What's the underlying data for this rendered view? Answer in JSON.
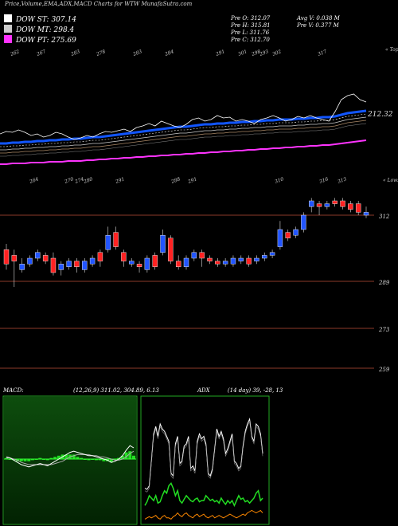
{
  "header": {
    "title": "Price,Volume,EMA,ADX,MACD Charts for WTW MunafaSutra.com",
    "legend": [
      {
        "label": "DOW ST: 307.14",
        "color": "#ffffff"
      },
      {
        "label": "DOW MT: 298.4",
        "color": "#cccccc"
      },
      {
        "label": "DOW PT: 275.69",
        "color": "#ff33ff"
      }
    ],
    "prev_stats": [
      "Pre O: 312.07",
      "Pre H: 315.81",
      "Pre L: 311.76",
      "Pre C: 312.70"
    ],
    "volume_stats": [
      "Avg V: 0.038 M",
      "Pre V: 0.377 M"
    ]
  },
  "colors": {
    "up_candle": "#2255ff",
    "down_candle": "#ff2222",
    "st_line": "#ffffff",
    "mt_line": "#cccccc",
    "pt_line": "#ff33ff",
    "ema_band": "#1155ff",
    "macd_histogram": "#22dd22",
    "adx_plus": "#22dd22",
    "adx_minus": "#ff8800",
    "panel_border": "#22aa22",
    "grid_line": "#8b3a2a"
  },
  "chart_data": [
    {
      "type": "line",
      "name": "ema-panel",
      "top_tick_labels": [
        "262",
        "267",
        "283",
        "278",
        "283",
        "284",
        "291",
        "301",
        "298",
        "293",
        "302",
        "317"
      ],
      "bottom_tick_labels": [
        "264",
        "270",
        "274",
        "280",
        "291",
        "288",
        "291",
        "310",
        "316",
        "313"
      ],
      "right_label": "« Tops",
      "bottom_right_label": "« Lows",
      "annotation": "212.32",
      "series": [
        {
          "name": "DOW ST",
          "values": [
            168,
            165,
            166,
            163,
            166,
            170,
            168,
            172,
            170,
            166,
            168,
            172,
            175,
            173,
            170,
            172,
            168,
            165,
            166,
            164,
            162,
            165,
            160,
            158,
            155,
            158,
            152,
            155,
            158,
            160,
            156,
            150,
            148,
            152,
            150,
            145,
            148,
            147,
            152,
            150,
            152,
            155,
            150,
            148,
            145,
            148,
            152,
            150,
            146,
            148,
            145,
            148,
            150,
            152,
            140,
            125,
            120,
            118,
            125,
            128
          ]
        },
        {
          "name": "DOW MT",
          "values": [
            188,
            188,
            187,
            187,
            186,
            186,
            185,
            185,
            184,
            184,
            183,
            183,
            182,
            182,
            181,
            180,
            180,
            179,
            178,
            177,
            176,
            175,
            174,
            173,
            172,
            171,
            170,
            169,
            168,
            167,
            167,
            166,
            165,
            164,
            164,
            163,
            163,
            162,
            162,
            161,
            161,
            160,
            160,
            159,
            159,
            158,
            158,
            158,
            157,
            157,
            156,
            156,
            155,
            155,
            154,
            152,
            150,
            149,
            148,
            147
          ]
        },
        {
          "name": "DOW PT",
          "values": [
            206,
            206,
            205,
            205,
            205,
            204,
            204,
            204,
            203,
            203,
            203,
            202,
            202,
            202,
            201,
            201,
            200,
            200,
            199,
            199,
            198,
            198,
            197,
            197,
            196,
            196,
            195,
            195,
            194,
            194,
            193,
            193,
            192,
            192,
            191,
            191,
            190,
            190,
            189,
            189,
            188,
            188,
            187,
            187,
            186,
            186,
            185,
            185,
            184,
            184,
            183,
            183,
            182,
            182,
            181,
            180,
            179,
            178,
            177,
            176
          ]
        }
      ]
    },
    {
      "type": "candlestick",
      "name": "price-panel",
      "right_labels": [
        "312",
        "289",
        "273",
        "259"
      ],
      "candles": [
        {
          "o": 295,
          "c": 300,
          "h": 302,
          "l": 293,
          "up": false
        },
        {
          "o": 298,
          "c": 296,
          "h": 300,
          "l": 287,
          "up": false
        },
        {
          "o": 295,
          "c": 293,
          "h": 297,
          "l": 292,
          "up": true
        },
        {
          "o": 297,
          "c": 295,
          "h": 298,
          "l": 294,
          "up": true
        },
        {
          "o": 299,
          "c": 297,
          "h": 300,
          "l": 296,
          "up": true
        },
        {
          "o": 298,
          "c": 296,
          "h": 299,
          "l": 295,
          "up": false
        },
        {
          "o": 297,
          "c": 292,
          "h": 299,
          "l": 291,
          "up": false
        },
        {
          "o": 293,
          "c": 295,
          "h": 296,
          "l": 291,
          "up": true
        },
        {
          "o": 294,
          "c": 296,
          "h": 297,
          "l": 293,
          "up": true
        },
        {
          "o": 296,
          "c": 294,
          "h": 297,
          "l": 292,
          "up": false
        },
        {
          "o": 293,
          "c": 296,
          "h": 297,
          "l": 292,
          "up": true
        },
        {
          "o": 295,
          "c": 297,
          "h": 298,
          "l": 294,
          "up": true
        },
        {
          "o": 299,
          "c": 296,
          "h": 300,
          "l": 294,
          "up": false
        },
        {
          "o": 300,
          "c": 305,
          "h": 308,
          "l": 299,
          "up": true
        },
        {
          "o": 306,
          "c": 301,
          "h": 308,
          "l": 300,
          "up": false
        },
        {
          "o": 299,
          "c": 296,
          "h": 300,
          "l": 294,
          "up": false
        },
        {
          "o": 296,
          "c": 295,
          "h": 297,
          "l": 294,
          "up": true
        },
        {
          "o": 295,
          "c": 294,
          "h": 296,
          "l": 292,
          "up": false
        },
        {
          "o": 293,
          "c": 297,
          "h": 298,
          "l": 292,
          "up": true
        },
        {
          "o": 298,
          "c": 294,
          "h": 299,
          "l": 293,
          "up": false
        },
        {
          "o": 299,
          "c": 305,
          "h": 307,
          "l": 298,
          "up": true
        },
        {
          "o": 304,
          "c": 296,
          "h": 305,
          "l": 295,
          "up": false
        },
        {
          "o": 296,
          "c": 294,
          "h": 298,
          "l": 293,
          "up": false
        },
        {
          "o": 294,
          "c": 297,
          "h": 298,
          "l": 293,
          "up": true
        },
        {
          "o": 297,
          "c": 299,
          "h": 300,
          "l": 296,
          "up": true
        },
        {
          "o": 299,
          "c": 297,
          "h": 300,
          "l": 294,
          "up": false
        },
        {
          "o": 297,
          "c": 296,
          "h": 298,
          "l": 295,
          "up": false
        },
        {
          "o": 296,
          "c": 295,
          "h": 297,
          "l": 294,
          "up": false
        },
        {
          "o": 295,
          "c": 296,
          "h": 297,
          "l": 294,
          "up": true
        },
        {
          "o": 295,
          "c": 297,
          "h": 298,
          "l": 294,
          "up": true
        },
        {
          "o": 297,
          "c": 296,
          "h": 298,
          "l": 295,
          "up": true
        },
        {
          "o": 297,
          "c": 295,
          "h": 298,
          "l": 294,
          "up": false
        },
        {
          "o": 296,
          "c": 297,
          "h": 298,
          "l": 295,
          "up": true
        },
        {
          "o": 297,
          "c": 298,
          "h": 299,
          "l": 296,
          "up": true
        },
        {
          "o": 298,
          "c": 299,
          "h": 300,
          "l": 297,
          "up": true
        },
        {
          "o": 301,
          "c": 307,
          "h": 310,
          "l": 300,
          "up": true
        },
        {
          "o": 306,
          "c": 304,
          "h": 307,
          "l": 303,
          "up": false
        },
        {
          "o": 305,
          "c": 307,
          "h": 308,
          "l": 304,
          "up": true
        },
        {
          "o": 307,
          "c": 312,
          "h": 313,
          "l": 306,
          "up": true
        },
        {
          "o": 315,
          "c": 317,
          "h": 318,
          "l": 313,
          "up": true
        },
        {
          "o": 316,
          "c": 315,
          "h": 317,
          "l": 312,
          "up": false
        },
        {
          "o": 315,
          "c": 316,
          "h": 317,
          "l": 314,
          "up": true
        },
        {
          "o": 317,
          "c": 316,
          "h": 318,
          "l": 315,
          "up": false
        },
        {
          "o": 317,
          "c": 315,
          "h": 318,
          "l": 314,
          "up": false
        },
        {
          "o": 316,
          "c": 314,
          "h": 317,
          "l": 313,
          "up": false
        },
        {
          "o": 316,
          "c": 313,
          "h": 317,
          "l": 312,
          "up": false
        },
        {
          "o": 313,
          "c": 312,
          "h": 315,
          "l": 311,
          "up": true
        }
      ]
    },
    {
      "type": "line",
      "name": "macd-panel",
      "label": "MACD:",
      "values_text": "(12,26,9) 311.02, 304.89, 6.13",
      "macd": [
        0.2,
        0.1,
        -0.1,
        -0.3,
        -0.5,
        -0.6,
        -0.7,
        -0.6,
        -0.5,
        -0.4,
        -0.5,
        -0.6,
        -0.4,
        -0.2,
        0.0,
        0.2,
        0.4,
        0.6,
        0.7,
        0.6,
        0.5,
        0.4,
        0.3,
        0.3,
        0.2,
        0.1,
        0.0,
        -0.1,
        -0.3,
        -0.2,
        0.0,
        0.3,
        0.8,
        1.2,
        1.0
      ],
      "signal": [
        0.1,
        0.1,
        0.0,
        -0.1,
        -0.3,
        -0.4,
        -0.5,
        -0.5,
        -0.5,
        -0.5,
        -0.5,
        -0.5,
        -0.5,
        -0.4,
        -0.3,
        -0.2,
        0.0,
        0.2,
        0.3,
        0.4,
        0.4,
        0.4,
        0.4,
        0.3,
        0.3,
        0.2,
        0.2,
        0.1,
        0.0,
        -0.1,
        -0.1,
        0.0,
        0.2,
        0.5,
        0.7
      ],
      "histogram": [
        0.1,
        0.0,
        -0.1,
        -0.2,
        -0.2,
        -0.2,
        -0.2,
        -0.1,
        0.0,
        0.1,
        0.0,
        -0.1,
        0.1,
        0.2,
        0.3,
        0.4,
        0.4,
        0.4,
        0.4,
        0.2,
        0.1,
        0.0,
        -0.1,
        0.0,
        -0.1,
        -0.1,
        -0.2,
        -0.2,
        -0.3,
        -0.1,
        0.1,
        0.3,
        0.6,
        0.7,
        0.3
      ]
    },
    {
      "type": "line",
      "name": "adx-panel",
      "label": "ADX",
      "values_text": "(14 day) 39, -28, 13",
      "adx": [
        28,
        27,
        30,
        50,
        72,
        78,
        70,
        80,
        76,
        74,
        70,
        66,
        40,
        38,
        64,
        70,
        48,
        50,
        62,
        64,
        70,
        44,
        46,
        42,
        66,
        72,
        68,
        70,
        64,
        40,
        38,
        44,
        60,
        76,
        70,
        74,
        68,
        56,
        60,
        66,
        72,
        50,
        48,
        44,
        46,
        62,
        74,
        80,
        84,
        70,
        66,
        80,
        78,
        72,
        56
      ],
      "di_plus": [
        14,
        17,
        22,
        20,
        18,
        22,
        16,
        17,
        22,
        26,
        24,
        30,
        32,
        28,
        22,
        26,
        18,
        16,
        19,
        22,
        20,
        18,
        17,
        19,
        20,
        17,
        18,
        18,
        22,
        20,
        18,
        19,
        17,
        18,
        16,
        20,
        17,
        15,
        18,
        16,
        18,
        14,
        18,
        22,
        19,
        20,
        17,
        18,
        16,
        18,
        20,
        24,
        26,
        18,
        20
      ],
      "di_minus": [
        3,
        4,
        5,
        4,
        5,
        6,
        4,
        3,
        5,
        6,
        4,
        4,
        3,
        5,
        6,
        8,
        6,
        5,
        7,
        8,
        6,
        5,
        4,
        6,
        7,
        5,
        6,
        7,
        5,
        4,
        5,
        6,
        4,
        5,
        6,
        5,
        4,
        5,
        6,
        7,
        6,
        5,
        4,
        5,
        6,
        7,
        6,
        8,
        9,
        10,
        9,
        8,
        9,
        10,
        8
      ]
    }
  ]
}
